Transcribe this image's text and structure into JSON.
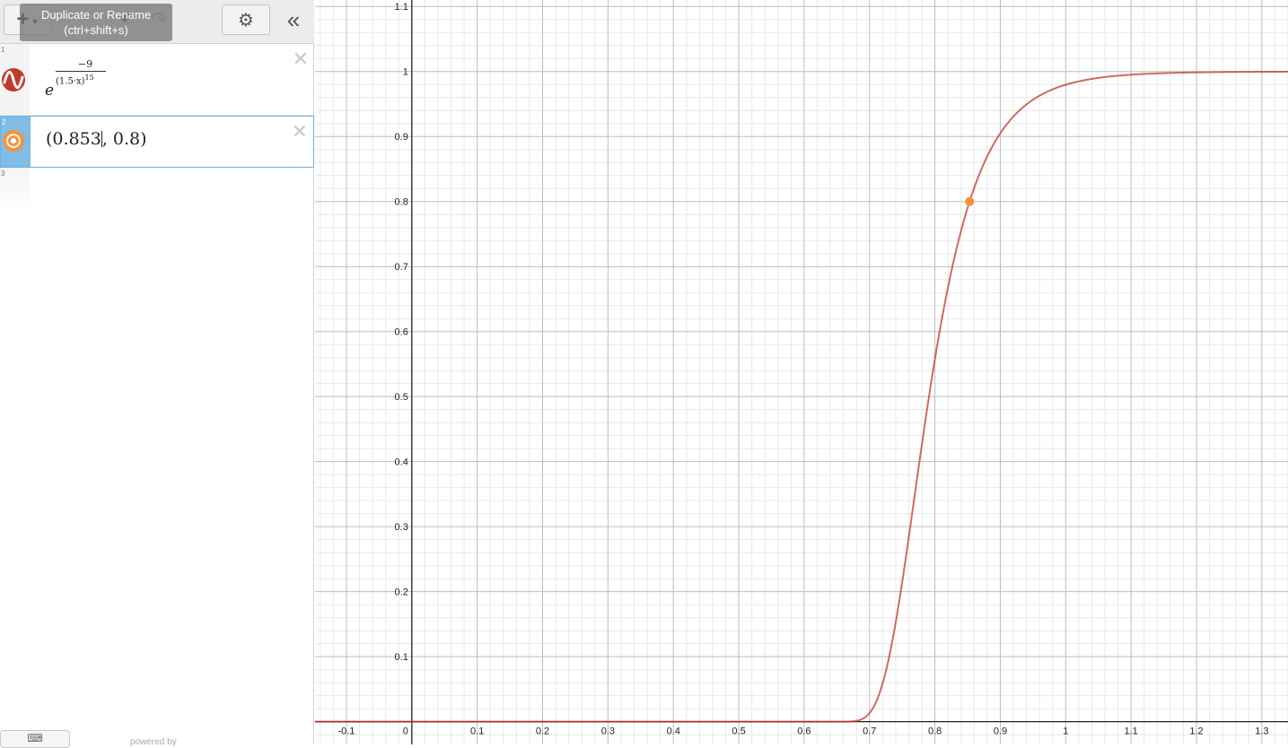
{
  "toolbar": {
    "add_label": "+",
    "add_icon": "plus-icon",
    "settings_icon": "gear-icon",
    "collapse_icon": "double-chevron-left-icon",
    "undo_icon": "undo-icon",
    "redo_icon": "redo-icon",
    "tooltip_line1": "Duplicate or Rename",
    "tooltip_line2": "(ctrl+shift+s)"
  },
  "expressions": [
    {
      "number": "1",
      "icon": "curve-icon",
      "color": "#c0392b",
      "latex": "e^{\\frac{-9}{(1.5\\cdot x)^{15}}}",
      "base": "e",
      "numerator": "−9",
      "denominator": "(1.5·x)",
      "denominator_exponent": "15"
    },
    {
      "number": "2",
      "icon": "point-icon",
      "color": "#f7923a",
      "latex": "(0.853, 0.8)",
      "before_cursor": "(0.853",
      "after_cursor": ", 0.8)",
      "selected": true
    },
    {
      "number": "3",
      "latex": ""
    }
  ],
  "footer": {
    "keyboard_icon": "keyboard-icon",
    "powered_by": "powered by"
  },
  "colors": {
    "curve": "#c0392b",
    "point": "#f7923a",
    "selected_gutter": "#7fbde6"
  },
  "graph": {
    "x_ticks": [
      "-0.1",
      "0",
      "0.1",
      "0.2",
      "0.3",
      "0.4",
      "0.5",
      "0.6",
      "0.7",
      "0.8",
      "0.9",
      "1",
      "1.1",
      "1.2",
      "1.3"
    ],
    "y_ticks": [
      "0.1",
      "0.2",
      "0.3",
      "0.4",
      "0.5",
      "0.6",
      "0.7",
      "0.8",
      "0.9",
      "1",
      "1.1"
    ],
    "x_range": [
      -0.148,
      1.34
    ],
    "y_range": [
      -0.035,
      1.11
    ],
    "grid": true,
    "minor_step": 0.02,
    "major_step": 0.1
  },
  "chart_data": {
    "type": "line",
    "title": "",
    "xlabel": "",
    "ylabel": "",
    "xlim": [
      -0.148,
      1.34
    ],
    "ylim": [
      -0.035,
      1.11
    ],
    "series": [
      {
        "function": "e^(-9/(1.5x)^15)",
        "x": [
          0.6,
          0.68,
          0.7,
          0.72,
          0.74,
          0.76,
          0.78,
          0.8,
          0.82,
          0.853,
          0.9,
          0.95,
          1.0,
          1.1,
          1.2,
          1.3
        ],
        "y": [
          0.0,
          0.0,
          0.011,
          0.05,
          0.14,
          0.28,
          0.42,
          0.55,
          0.66,
          0.8,
          0.9,
          0.95,
          0.979,
          0.996,
          0.999,
          1.0
        ]
      }
    ],
    "points": [
      {
        "x": 0.853,
        "y": 0.8
      }
    ]
  }
}
